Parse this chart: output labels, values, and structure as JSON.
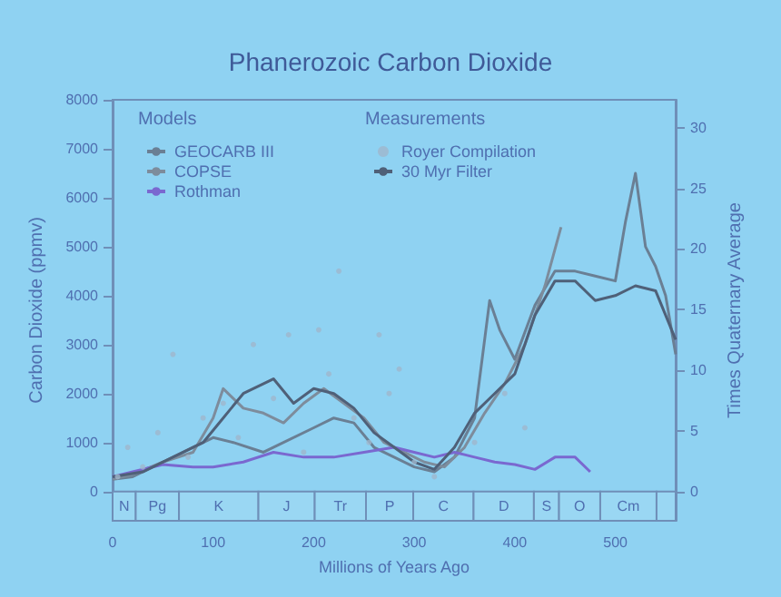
{
  "chart_data": {
    "type": "line",
    "title": "Phanerozoic Carbon Dioxide",
    "xlabel": "Millions of Years Ago",
    "ylabel": "Carbon Dioxide (ppmv)",
    "y2label": "Times Quaternary Average",
    "xlim": [
      0,
      560
    ],
    "xticks": [
      0,
      100,
      200,
      300,
      400,
      500
    ],
    "ylim": [
      -600,
      8000
    ],
    "yticks": [
      0,
      {
        "value": 1000,
        "label": "1000"
      },
      {
        "value": 2000,
        "label": "2000"
      },
      {
        "value": 3000,
        "label": "3000"
      },
      {
        "value": 4000,
        "label": "4000"
      },
      {
        "value": 5000,
        "label": "5000"
      },
      {
        "value": 6000,
        "label": "6000"
      },
      {
        "value": 7000,
        "label": "7000"
      },
      {
        "value": 8000,
        "label": "8000"
      }
    ],
    "y2lim": [
      -2.4,
      32.3
    ],
    "y2ticks": [
      0,
      5,
      10,
      15,
      20,
      25,
      30
    ],
    "legend": "top left",
    "grid": false,
    "annotations": [
      "Models",
      "Measurements"
    ],
    "bands": [
      {
        "axis": "x",
        "from": 0,
        "to": 23,
        "label": "N",
        "color": "#9ad7f3"
      },
      {
        "axis": "x",
        "from": 23,
        "to": 66,
        "label": "Pg"
      },
      {
        "axis": "x",
        "from": 66,
        "to": 145,
        "label": "K"
      },
      {
        "axis": "x",
        "from": 145,
        "to": 201,
        "label": "J"
      },
      {
        "axis": "x",
        "from": 201,
        "to": 252,
        "label": "Tr"
      },
      {
        "axis": "x",
        "from": 252,
        "to": 299,
        "label": "P"
      },
      {
        "axis": "x",
        "from": 299,
        "to": 359,
        "label": "C"
      },
      {
        "axis": "x",
        "from": 359,
        "to": 419,
        "label": "D"
      },
      {
        "axis": "x",
        "from": 419,
        "to": 444,
        "label": "S"
      },
      {
        "axis": "x",
        "from": 444,
        "to": 485,
        "label": "O"
      },
      {
        "axis": "x",
        "from": 485,
        "to": 541,
        "label": "Cm"
      },
      {
        "axis": "x",
        "from": 541,
        "to": 560
      }
    ],
    "series": [
      {
        "name": "GEOCARB III",
        "color": "#6a7f94",
        "x": [
          0,
          20,
          50,
          80,
          100,
          120,
          150,
          170,
          200,
          220,
          240,
          260,
          280,
          300,
          320,
          340,
          360,
          375,
          385,
          400,
          420,
          440,
          460,
          480,
          500,
          510,
          520,
          530,
          540,
          550,
          560
        ],
        "values": [
          250,
          300,
          600,
          900,
          1100,
          1000,
          800,
          1000,
          1300,
          1500,
          1400,
          900,
          700,
          500,
          400,
          700,
          1500,
          3900,
          3300,
          2700,
          3800,
          4500,
          4500,
          4400,
          4300,
          5500,
          6500,
          5000,
          4600,
          4000,
          2800
        ]
      },
      {
        "name": "COPSE",
        "color": "#7d8c9c",
        "x": [
          0,
          20,
          50,
          80,
          100,
          110,
          130,
          150,
          170,
          190,
          210,
          230,
          250,
          270,
          290,
          310,
          330,
          350,
          370,
          390,
          410,
          430,
          446
        ],
        "values": [
          250,
          350,
          600,
          800,
          1500,
          2100,
          1700,
          1600,
          1400,
          1800,
          2100,
          1800,
          1500,
          1000,
          800,
          600,
          500,
          900,
          1600,
          2200,
          3000,
          4200,
          5400
        ]
      },
      {
        "name": "Rothman",
        "color": "#7a68d0",
        "x": [
          0,
          20,
          50,
          80,
          100,
          130,
          160,
          190,
          220,
          250,
          280,
          300,
          320,
          340,
          360,
          380,
          400,
          420,
          440,
          460,
          475
        ],
        "values": [
          300,
          400,
          550,
          500,
          500,
          600,
          800,
          700,
          700,
          800,
          900,
          800,
          700,
          800,
          700,
          600,
          550,
          450,
          700,
          700,
          400
        ]
      },
      {
        "name": "Royer Compilation",
        "type": "scatter",
        "color": "#9fb6cc",
        "x": [
          5,
          15,
          30,
          45,
          60,
          75,
          90,
          110,
          125,
          140,
          160,
          175,
          190,
          205,
          215,
          225,
          240,
          255,
          265,
          275,
          285,
          300,
          320,
          360,
          390,
          410
        ],
        "values": [
          300,
          900,
          500,
          1200,
          2800,
          700,
          1500,
          1800,
          1100,
          3000,
          1900,
          3200,
          800,
          3300,
          2400,
          4500,
          1500,
          1000,
          3200,
          2000,
          2500,
          600,
          300,
          1000,
          2000,
          1300
        ]
      },
      {
        "name": "30 Myr Filter",
        "color": "#4f6078",
        "x": [
          0,
          30,
          60,
          90,
          110,
          130,
          160,
          180,
          200,
          220,
          240,
          260,
          280,
          300,
          320,
          340,
          360,
          380,
          400,
          420,
          440,
          460,
          480,
          500,
          520,
          540,
          560
        ],
        "values": [
          300,
          400,
          700,
          1000,
          1500,
          2000,
          2300,
          1800,
          2100,
          2000,
          1700,
          1200,
          900,
          600,
          450,
          900,
          1600,
          2000,
          2400,
          3600,
          4300,
          4300,
          3900,
          4000,
          4200,
          4100,
          3100
        ]
      }
    ]
  }
}
